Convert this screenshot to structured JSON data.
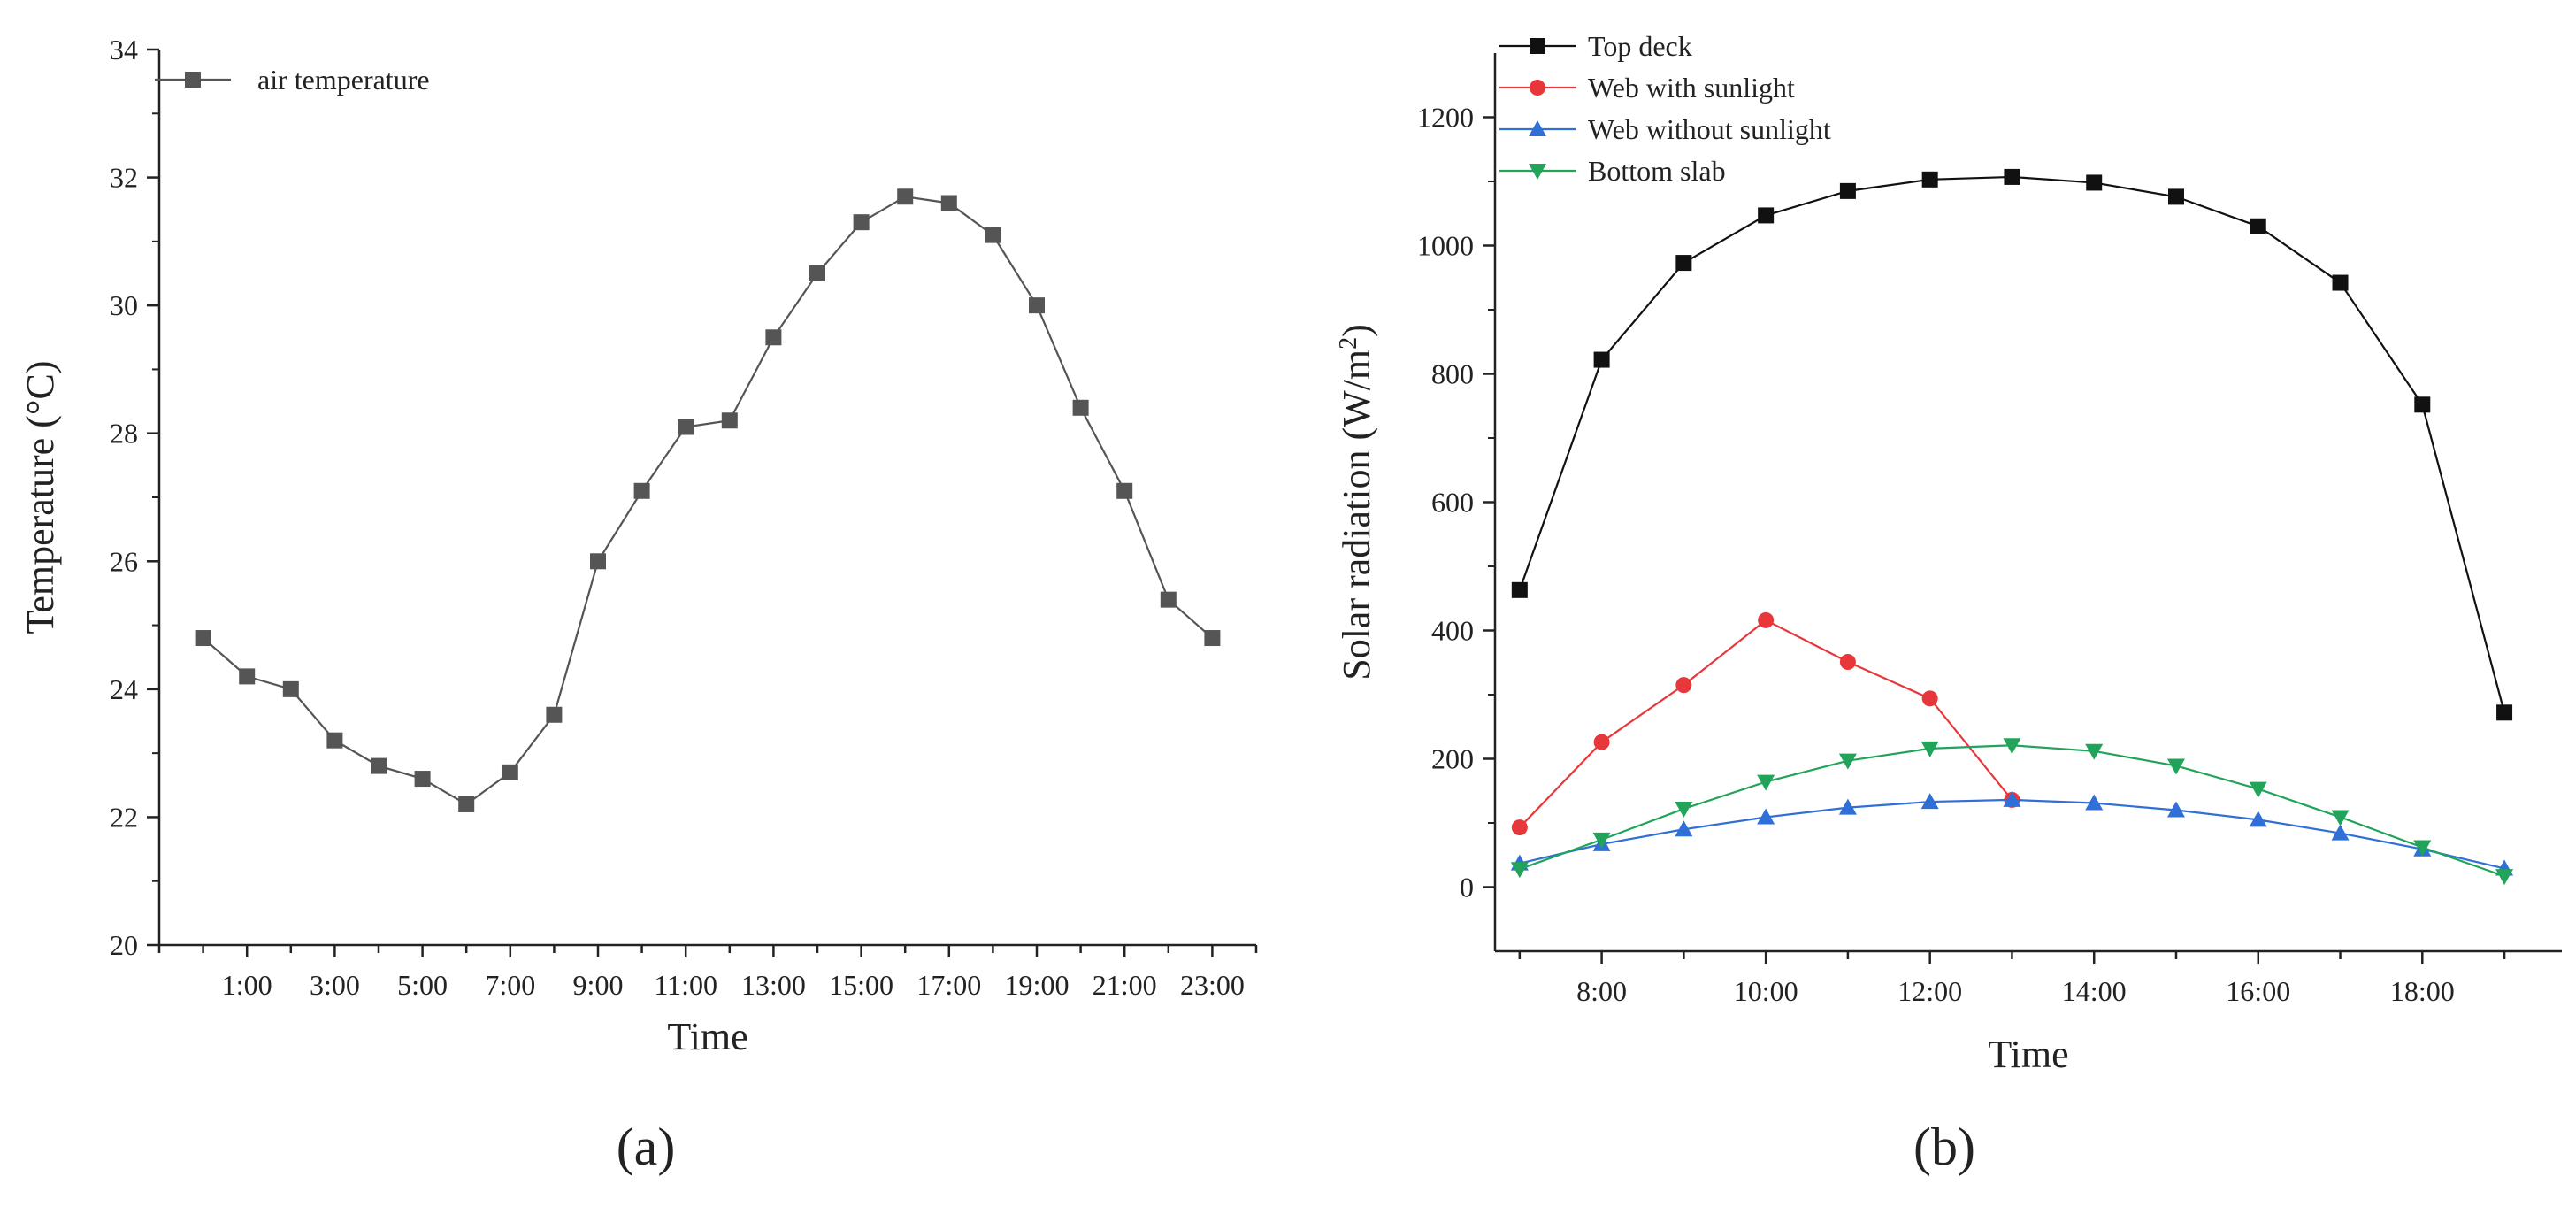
{
  "chart_data": [
    {
      "type": "line",
      "panel_label": "(a)",
      "title": "",
      "xlabel": "Time",
      "ylabel": "Temperature (°C)",
      "ylim": [
        20,
        34
      ],
      "xlim": [
        -1,
        24
      ],
      "yticks": [
        20,
        22,
        24,
        26,
        28,
        30,
        32,
        34
      ],
      "xticks": [
        {
          "x": 1,
          "label": "1:00"
        },
        {
          "x": 3,
          "label": "3:00"
        },
        {
          "x": 5,
          "label": "5:00"
        },
        {
          "x": 7,
          "label": "7:00"
        },
        {
          "x": 9,
          "label": "9:00"
        },
        {
          "x": 11,
          "label": "11:00"
        },
        {
          "x": 13,
          "label": "13:00"
        },
        {
          "x": 15,
          "label": "15:00"
        },
        {
          "x": 17,
          "label": "17:00"
        },
        {
          "x": 19,
          "label": "19:00"
        },
        {
          "x": 21,
          "label": "21:00"
        },
        {
          "x": 23,
          "label": "23:00"
        }
      ],
      "legend_position": "top-left",
      "series": [
        {
          "name": "air temperature",
          "color": "#555555",
          "marker": "square",
          "x": [
            0,
            1,
            2,
            3,
            4,
            5,
            6,
            7,
            8,
            9,
            10,
            11,
            12,
            13,
            14,
            15,
            16,
            17,
            18,
            19,
            20,
            21,
            22,
            23
          ],
          "values": [
            24.8,
            24.2,
            24.0,
            23.2,
            22.8,
            22.6,
            22.2,
            22.7,
            23.6,
            26.0,
            27.1,
            28.1,
            28.2,
            29.5,
            30.5,
            31.3,
            31.7,
            31.6,
            31.1,
            30.0,
            28.4,
            27.1,
            25.4,
            24.8
          ]
        }
      ]
    },
    {
      "type": "line",
      "panel_label": "(b)",
      "title": "",
      "xlabel": "Time",
      "ylabel_main": "Solar radiation (W/m",
      "ylabel_sup": "2",
      "ylabel_close": ")",
      "ylim": [
        -100,
        1300
      ],
      "xlim": [
        6.7,
        19.7
      ],
      "yticks": [
        0,
        200,
        400,
        600,
        800,
        1000,
        1200
      ],
      "xticks": [
        {
          "x": 8,
          "label": "8:00"
        },
        {
          "x": 10,
          "label": "10:00"
        },
        {
          "x": 12,
          "label": "12:00"
        },
        {
          "x": 14,
          "label": "14:00"
        },
        {
          "x": 16,
          "label": "16:00"
        },
        {
          "x": 18,
          "label": "18:00"
        }
      ],
      "legend_position": "top-left",
      "series": [
        {
          "name": "Top deck",
          "color": "#111111",
          "marker": "square",
          "x": [
            7,
            8,
            9,
            10,
            11,
            12,
            13,
            14,
            15,
            16,
            17,
            18,
            19
          ],
          "values": [
            463,
            822,
            973,
            1047,
            1085,
            1103,
            1107,
            1098,
            1076,
            1030,
            942,
            752,
            272
          ]
        },
        {
          "name": "Web with sunlight",
          "color": "#e8373a",
          "marker": "circle",
          "x": [
            7,
            8,
            9,
            10,
            11,
            12,
            13
          ],
          "values": [
            93,
            226,
            315,
            416,
            351,
            294,
            136
          ]
        },
        {
          "name": "Web without sunlight",
          "color": "#2f6fd6",
          "marker": "triangle-up",
          "x": [
            7,
            8,
            9,
            10,
            11,
            12,
            13,
            14,
            15,
            16,
            17,
            18,
            19
          ],
          "values": [
            37,
            67,
            90,
            109,
            124,
            133,
            136,
            131,
            120,
            105,
            84,
            59,
            29
          ]
        },
        {
          "name": "Bottom slab",
          "color": "#22a35a",
          "marker": "triangle-down",
          "x": [
            7,
            8,
            9,
            10,
            11,
            12,
            13,
            14,
            15,
            16,
            17,
            18,
            19
          ],
          "values": [
            28,
            74,
            122,
            164,
            197,
            216,
            221,
            212,
            189,
            153,
            109,
            62,
            17
          ]
        }
      ]
    }
  ]
}
